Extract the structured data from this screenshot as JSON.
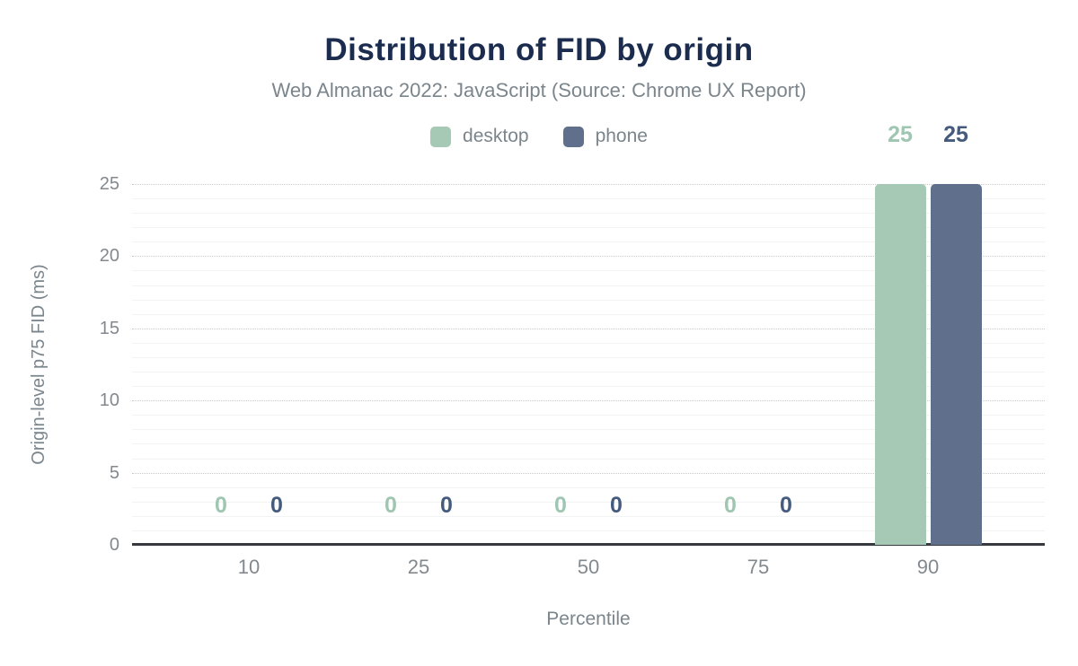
{
  "chart_data": {
    "type": "bar",
    "title": "Distribution of FID by origin",
    "subtitle": "Web Almanac 2022: JavaScript (Source: Chrome UX Report)",
    "categories": [
      "10",
      "25",
      "50",
      "75",
      "90"
    ],
    "series": [
      {
        "name": "desktop",
        "color": "#a6c9b5",
        "label_color": "#9fc6b1",
        "values": [
          0,
          0,
          0,
          0,
          25
        ]
      },
      {
        "name": "phone",
        "color": "#60708c",
        "label_color": "#455b7e",
        "values": [
          0,
          0,
          0,
          0,
          25
        ]
      }
    ],
    "xlabel": "Percentile",
    "ylabel": "Origin-level p75 FID (ms)",
    "ylim": [
      0,
      25
    ],
    "yticks": [
      0,
      5,
      10,
      15,
      20,
      25
    ],
    "grid": "horizontal; dotted major lines every 5, faint solid minor lines every 1",
    "legend_position": "top",
    "value_labels": true,
    "colors": {
      "title": "#1b2c4f",
      "subtitle": "#7b858c",
      "tick_text": "#82898f",
      "axis_label_text": "#7b858c",
      "axis_line": "#36393e",
      "grid_major": "#c9c9c9",
      "grid_minor": "#f3f3f3",
      "background": "#ffffff"
    }
  }
}
